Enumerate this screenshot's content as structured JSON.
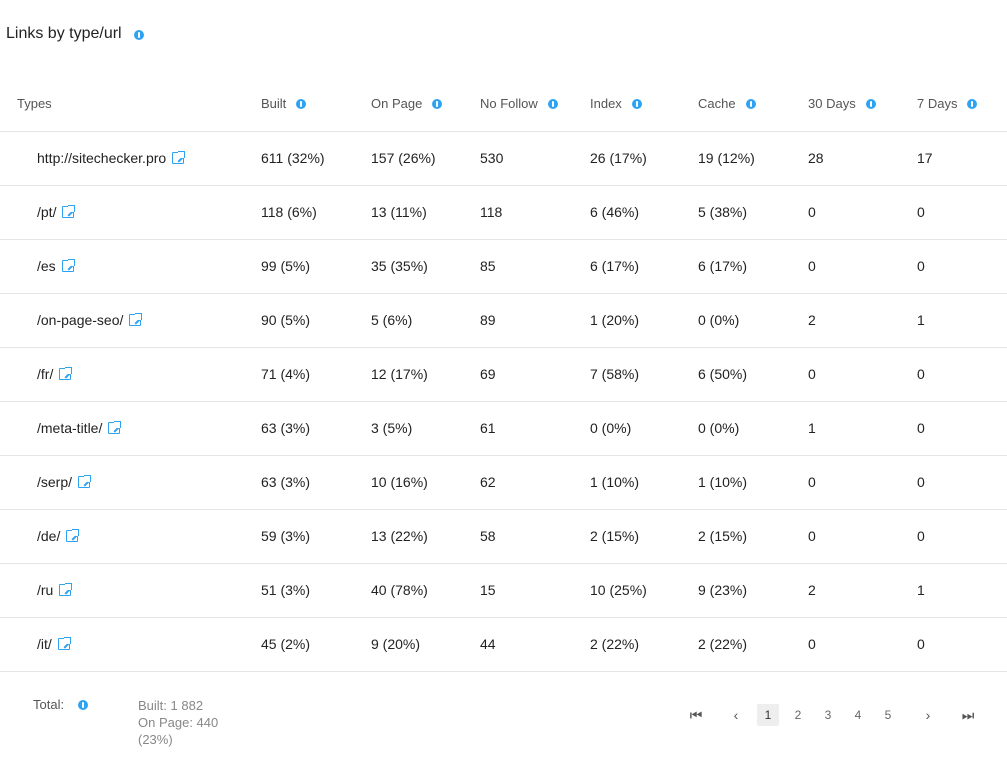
{
  "title": "Links by type/url",
  "columns": [
    "Types",
    "Built",
    "On Page",
    "No Follow",
    "Index",
    "Cache",
    "30 Days",
    "7 Days"
  ],
  "rows": [
    [
      "http://sitechecker.pro",
      "611 (32%)",
      "157 (26%)",
      "530",
      "26 (17%)",
      "19 (12%)",
      "28",
      "17"
    ],
    [
      "/pt/",
      "118 (6%)",
      "13 (11%)",
      "118",
      "6 (46%)",
      "5 (38%)",
      "0",
      "0"
    ],
    [
      "/es",
      "99 (5%)",
      "35 (35%)",
      "85",
      "6 (17%)",
      "6 (17%)",
      "0",
      "0"
    ],
    [
      "/on-page-seo/",
      "90 (5%)",
      "5 (6%)",
      "89",
      "1 (20%)",
      "0 (0%)",
      "2",
      "1"
    ],
    [
      "/fr/",
      "71 (4%)",
      "12 (17%)",
      "69",
      "7 (58%)",
      "6 (50%)",
      "0",
      "0"
    ],
    [
      "/meta-title/",
      "63 (3%)",
      "3 (5%)",
      "61",
      "0 (0%)",
      "0 (0%)",
      "1",
      "0"
    ],
    [
      "/serp/",
      "63 (3%)",
      "10 (16%)",
      "62",
      "1 (10%)",
      "1 (10%)",
      "0",
      "0"
    ],
    [
      "/de/",
      "59 (3%)",
      "13 (22%)",
      "58",
      "2 (15%)",
      "2 (15%)",
      "0",
      "0"
    ],
    [
      "/ru",
      "51 (3%)",
      "40 (78%)",
      "15",
      "10 (25%)",
      "9 (23%)",
      "2",
      "1"
    ],
    [
      "/it/",
      "45 (2%)",
      "9 (20%)",
      "44",
      "2 (22%)",
      "2 (22%)",
      "0",
      "0"
    ]
  ],
  "footer": {
    "total_label": "Total:",
    "built": "Built: 1 882",
    "on_page": "On Page: 440",
    "on_page_pct": "(23%)"
  },
  "pagination": {
    "first": "⏮",
    "prev": "‹",
    "pages": [
      "1",
      "2",
      "3",
      "4",
      "5"
    ],
    "active_page": "1",
    "next": "›",
    "last": "⏭"
  },
  "colors": {
    "accent": "#2ea3f2",
    "border": "#e6e6e6",
    "active_page_bg": "#eeeeee"
  },
  "icons": {
    "info": "info-icon",
    "external": "external-link-icon"
  }
}
